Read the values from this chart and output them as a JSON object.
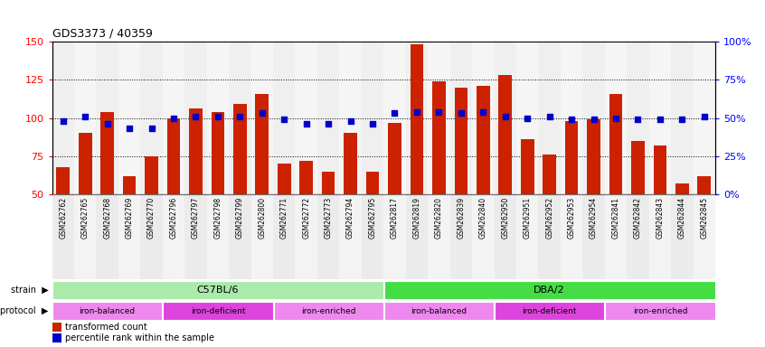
{
  "title": "GDS3373 / 40359",
  "samples": [
    "GSM262762",
    "GSM262765",
    "GSM262768",
    "GSM262769",
    "GSM262770",
    "GSM262796",
    "GSM262797",
    "GSM262798",
    "GSM262799",
    "GSM262800",
    "GSM262771",
    "GSM262772",
    "GSM262773",
    "GSM262794",
    "GSM262795",
    "GSM262817",
    "GSM262819",
    "GSM262820",
    "GSM262839",
    "GSM262840",
    "GSM262950",
    "GSM262951",
    "GSM262952",
    "GSM262953",
    "GSM262954",
    "GSM262841",
    "GSM262842",
    "GSM262843",
    "GSM262844",
    "GSM262845"
  ],
  "bar_values": [
    68,
    90,
    104,
    62,
    75,
    100,
    106,
    104,
    109,
    116,
    70,
    72,
    65,
    90,
    65,
    97,
    148,
    124,
    120,
    121,
    128,
    86,
    76,
    98,
    99,
    116,
    85,
    82,
    57,
    62
  ],
  "percentile_values": [
    98,
    101,
    96,
    93,
    93,
    100,
    101,
    101,
    101,
    103,
    99,
    96,
    96,
    98,
    96,
    103,
    104,
    104,
    103,
    104,
    101,
    100,
    101,
    99,
    99,
    100,
    99,
    99,
    99,
    101
  ],
  "bar_color": "#cc2200",
  "dot_color": "#0000cc",
  "ylim_left": [
    50,
    150
  ],
  "yticks_left": [
    50,
    75,
    100,
    125,
    150
  ],
  "ylim_right": [
    0,
    100
  ],
  "yticks_right": [
    0,
    25,
    50,
    75,
    100
  ],
  "ytick_labels_right": [
    "0%",
    "25%",
    "50%",
    "75%",
    "100%"
  ],
  "hlines": [
    75,
    100,
    125
  ],
  "strain_groups": [
    {
      "label": "C57BL/6",
      "start": 0,
      "end": 14,
      "color": "#aaeaaa"
    },
    {
      "label": "DBA/2",
      "start": 15,
      "end": 29,
      "color": "#44dd44"
    }
  ],
  "protocol_groups": [
    {
      "label": "iron-balanced",
      "start": 0,
      "end": 4,
      "color": "#ee88ee"
    },
    {
      "label": "iron-deficient",
      "start": 5,
      "end": 9,
      "color": "#dd44dd"
    },
    {
      "label": "iron-enriched",
      "start": 10,
      "end": 14,
      "color": "#ee88ee"
    },
    {
      "label": "iron-balanced",
      "start": 15,
      "end": 19,
      "color": "#ee88ee"
    },
    {
      "label": "iron-deficient",
      "start": 20,
      "end": 24,
      "color": "#dd44dd"
    },
    {
      "label": "iron-enriched",
      "start": 25,
      "end": 29,
      "color": "#ee88ee"
    }
  ],
  "legend_bar_label": "transformed count",
  "legend_dot_label": "percentile rank within the sample",
  "grid_color": "#000000",
  "bg_color": "#ffffff",
  "plot_bg_color": "#ffffff"
}
